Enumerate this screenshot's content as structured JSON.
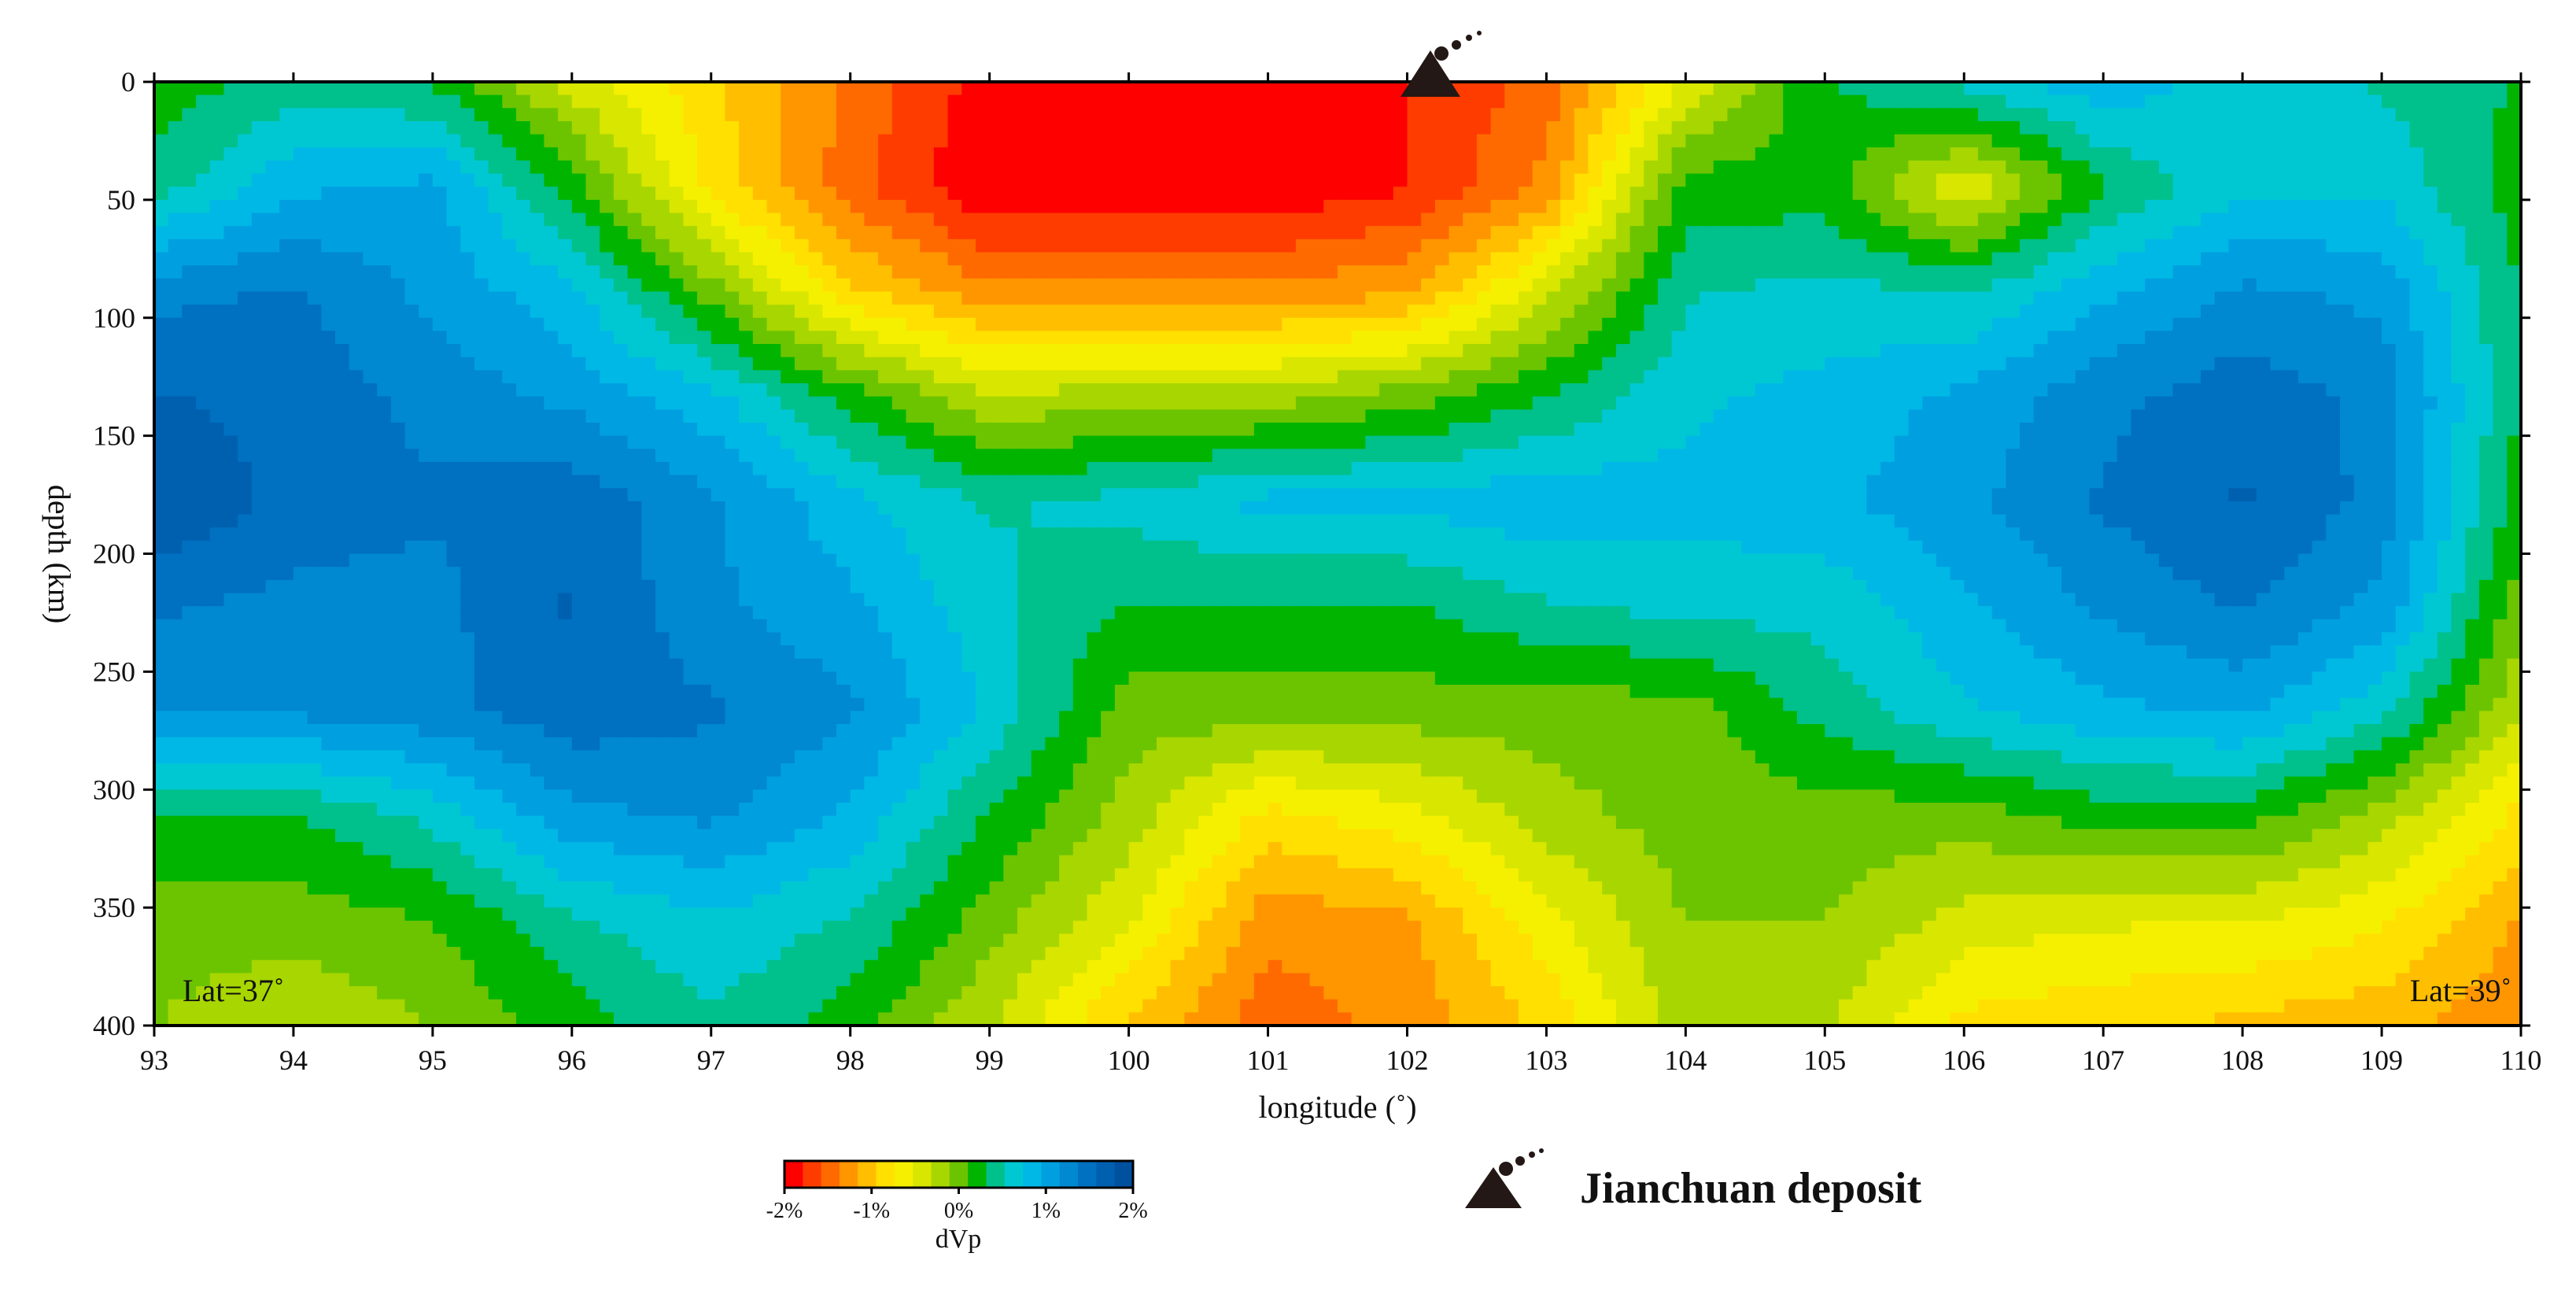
{
  "chart_data": {
    "type": "heatmap",
    "xlabel": "longitude (˚)",
    "ylabel": "depth (km)",
    "xlim": [
      93,
      110
    ],
    "ylim": [
      0,
      400
    ],
    "x_ticks": [
      93,
      94,
      95,
      96,
      97,
      98,
      99,
      100,
      101,
      102,
      103,
      104,
      105,
      106,
      107,
      108,
      109,
      110
    ],
    "y_ticks": [
      0,
      50,
      100,
      150,
      200,
      250,
      300,
      350,
      400
    ],
    "y_inverted": true,
    "corner_labels": {
      "left": "Lat=37˚",
      "right": "Lat=39˚"
    },
    "colorbar": {
      "title": "dVp",
      "range": [
        -2,
        2
      ],
      "unit": "%",
      "tick_labels": [
        "-2%",
        "-1%",
        "0%",
        "1%",
        "2%"
      ],
      "tick_values": [
        -2,
        -1,
        0,
        1,
        2
      ],
      "colors": [
        "#ff0000",
        "#ff3c00",
        "#ff6a00",
        "#ff9600",
        "#ffbe00",
        "#ffe000",
        "#f5f000",
        "#d8e600",
        "#a8d600",
        "#6cc400",
        "#00b400",
        "#00c08c",
        "#00c8d2",
        "#00b8e6",
        "#00a0e0",
        "#0088d0",
        "#0070c0",
        "#0060b0",
        "#0050a0"
      ]
    },
    "z_grid": [
      [
        0.2,
        0.4,
        0.3,
        -0.4,
        -0.9,
        -1.4,
        -1.9,
        -2.0,
        -2.0,
        -1.8,
        -1.5,
        -0.5,
        0.3,
        0.6,
        0.9,
        0.6,
        0.5,
        0.3
      ],
      [
        0.4,
        0.9,
        1.0,
        0.2,
        -0.8,
        -1.5,
        -2.0,
        -2.0,
        -2.0,
        -1.8,
        -1.3,
        0.2,
        0.2,
        -0.5,
        0.3,
        0.7,
        0.7,
        0.2
      ],
      [
        1.3,
        1.4,
        1.1,
        0.8,
        0.0,
        -0.9,
        -1.3,
        -1.3,
        -1.3,
        -1.2,
        -0.4,
        0.5,
        0.6,
        0.5,
        0.9,
        1.2,
        1.1,
        0.3
      ],
      [
        1.6,
        1.5,
        1.3,
        1.1,
        0.8,
        0.2,
        -0.3,
        -0.2,
        -0.2,
        0.0,
        0.3,
        0.7,
        0.8,
        1.0,
        1.3,
        1.5,
        1.3,
        0.3
      ],
      [
        1.8,
        1.5,
        1.4,
        1.5,
        1.2,
        0.8,
        0.5,
        0.6,
        0.8,
        0.8,
        0.9,
        0.8,
        0.9,
        1.1,
        1.4,
        1.6,
        1.3,
        0.2
      ],
      [
        1.4,
        1.3,
        1.3,
        1.6,
        1.2,
        1.0,
        0.6,
        0.3,
        0.3,
        0.3,
        0.5,
        0.6,
        0.6,
        0.9,
        1.2,
        1.4,
        1.1,
        0.0
      ],
      [
        1.2,
        1.2,
        1.3,
        1.5,
        1.4,
        1.2,
        0.7,
        0.0,
        0.0,
        0.0,
        0.0,
        0.0,
        0.4,
        0.7,
        0.9,
        1.0,
        0.6,
        -0.3
      ],
      [
        0.3,
        0.3,
        0.6,
        1.1,
        1.2,
        0.9,
        0.3,
        -0.2,
        -0.8,
        -0.6,
        -0.2,
        0.0,
        0.0,
        0.0,
        0.2,
        0.2,
        -0.2,
        -0.8
      ],
      [
        0.0,
        0.0,
        0.1,
        0.5,
        0.7,
        0.5,
        0.0,
        -0.5,
        -1.3,
        -1.2,
        -0.6,
        -0.1,
        -0.1,
        -0.4,
        -0.5,
        -0.5,
        -0.7,
        -1.2
      ],
      [
        -0.1,
        -0.3,
        -0.1,
        0.2,
        0.5,
        0.2,
        -0.3,
        -1.0,
        -1.5,
        -1.3,
        -0.9,
        -0.2,
        -0.3,
        -0.8,
        -0.9,
        -1.0,
        -1.1,
        -1.3
      ]
    ]
  },
  "legend": {
    "deposit_label": "Jianchuan deposit"
  },
  "deposit_marker": {
    "longitude": 102.2,
    "depth": 0
  }
}
